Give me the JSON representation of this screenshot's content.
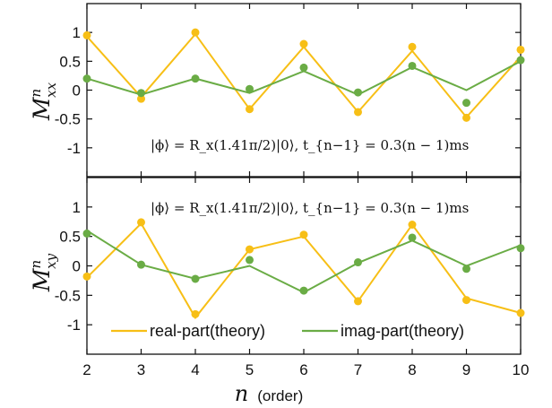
{
  "colors": {
    "real": "#f7bf16",
    "imag": "#6aac45",
    "axis": "#111111"
  },
  "chart_data": [
    {
      "type": "line",
      "ylabel": "M",
      "ylabel_sup": "n",
      "ylabel_sub": "xx",
      "annotation": "|ϕ⟩ = R_x(1.41π/2)|0⟩,  t_{n−1} = 0.3(n − 1)ms",
      "annotation_pos": "bottom-right",
      "x": [
        2,
        3,
        4,
        5,
        6,
        7,
        8,
        9,
        10
      ],
      "xlim": [
        2,
        10
      ],
      "ylim": [
        -1.5,
        1.5
      ],
      "yticks": [
        "-1",
        "-0.5",
        "0",
        "0.5",
        "1"
      ],
      "yticks_values": [
        -1,
        -0.5,
        0,
        0.5,
        1
      ],
      "series": [
        {
          "name": "real-part(theory)",
          "kind": "line",
          "color": "real",
          "values": [
            0.93,
            -0.12,
            0.97,
            -0.33,
            0.75,
            -0.38,
            0.68,
            -0.47,
            0.58
          ]
        },
        {
          "name": "imag-part(theory)",
          "kind": "line",
          "color": "imag",
          "values": [
            0.2,
            -0.08,
            0.2,
            -0.05,
            0.33,
            -0.08,
            0.4,
            0.0,
            0.5
          ]
        },
        {
          "kind": "points",
          "color": "real",
          "values": [
            0.95,
            -0.15,
            1.0,
            -0.33,
            0.8,
            -0.38,
            0.75,
            -0.48,
            0.7
          ]
        },
        {
          "kind": "points",
          "color": "imag",
          "values": [
            0.2,
            -0.05,
            0.2,
            0.02,
            0.39,
            -0.04,
            0.42,
            -0.22,
            0.52
          ]
        }
      ]
    },
    {
      "type": "line",
      "ylabel": "M",
      "ylabel_sup": "n",
      "ylabel_sub": "xy",
      "annotation": "|ϕ⟩ = R_x(1.41π/2)|0⟩,  t_{n−1} = 0.3(n − 1)ms",
      "annotation_pos": "top-right",
      "x": [
        2,
        3,
        4,
        5,
        6,
        7,
        8,
        9,
        10
      ],
      "xlim": [
        2,
        10
      ],
      "ylim": [
        -1.5,
        1.5
      ],
      "xticks": [
        "2",
        "3",
        "4",
        "5",
        "6",
        "7",
        "8",
        "9",
        "10"
      ],
      "yticks": [
        "-1",
        "-0.5",
        "0",
        "0.5",
        "1"
      ],
      "yticks_values": [
        -1,
        -0.5,
        0,
        0.5,
        1
      ],
      "xlabel": "n",
      "xlabel_unit": "(order)",
      "legend": {
        "position": "bottom",
        "entries": [
          "real-part(theory)",
          "imag-part(theory)"
        ]
      },
      "series": [
        {
          "name": "real-part(theory)",
          "kind": "line",
          "color": "real",
          "values": [
            -0.2,
            0.72,
            -0.88,
            0.28,
            0.5,
            -0.6,
            0.7,
            -0.55,
            -0.8
          ]
        },
        {
          "name": "imag-part(theory)",
          "kind": "line",
          "color": "imag",
          "values": [
            0.6,
            0.02,
            -0.22,
            0.0,
            -0.45,
            0.05,
            0.43,
            0.0,
            0.35
          ]
        },
        {
          "kind": "points",
          "color": "real",
          "values": [
            -0.18,
            0.74,
            -0.82,
            0.28,
            0.53,
            -0.6,
            0.7,
            -0.58,
            -0.8
          ]
        },
        {
          "kind": "points",
          "color": "imag",
          "values": [
            0.55,
            0.02,
            -0.22,
            0.1,
            -0.42,
            0.06,
            0.48,
            -0.05,
            0.3
          ]
        }
      ]
    }
  ]
}
